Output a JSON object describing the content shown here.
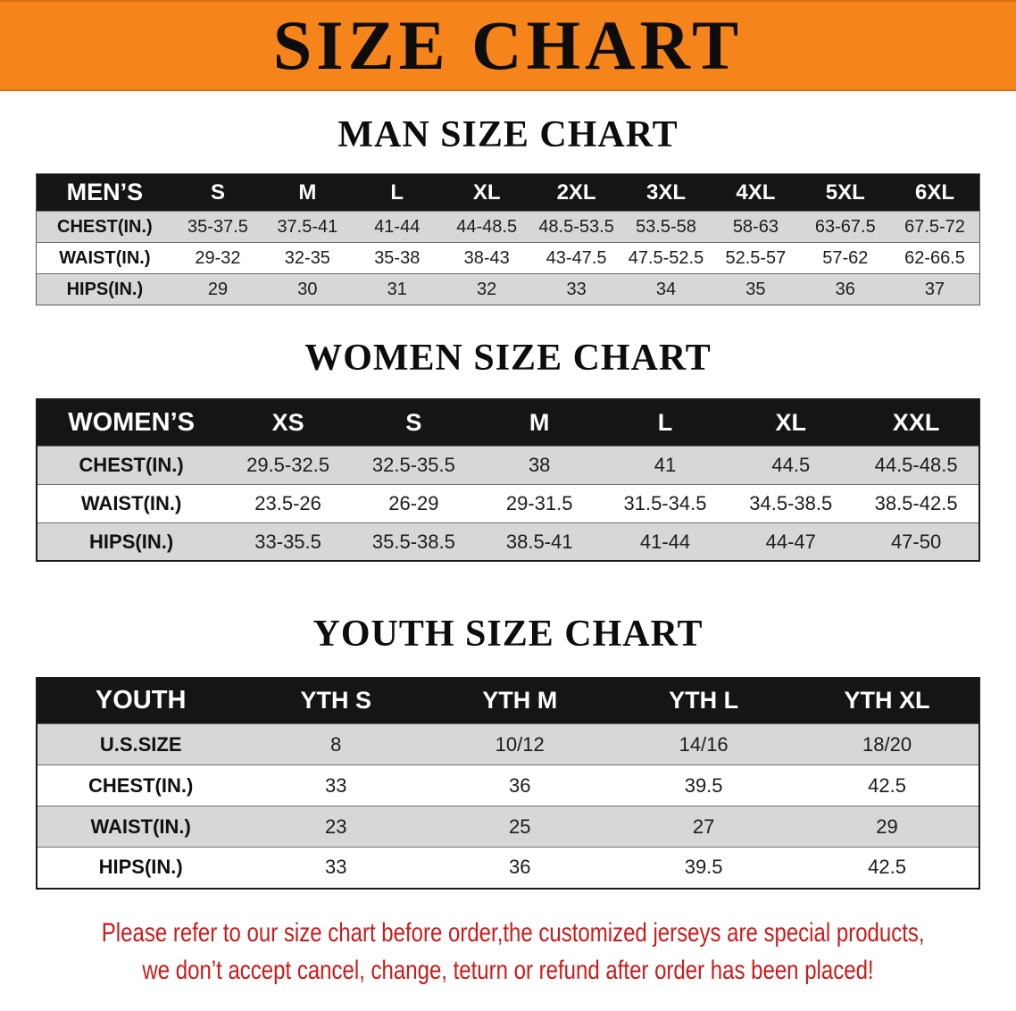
{
  "banner": {
    "title": "SIZE CHART"
  },
  "sections": [
    {
      "id": "men",
      "heading": "MAN SIZE CHART",
      "table": {
        "header": [
          "MEN’S",
          "S",
          "M",
          "L",
          "XL",
          "2XL",
          "3XL",
          "4XL",
          "5XL",
          "6XL"
        ],
        "rows": [
          [
            "CHEST(IN.)",
            "35-37.5",
            "37.5-41",
            "41-44",
            "44-48.5",
            "48.5-53.5",
            "53.5-58",
            "58-63",
            "63-67.5",
            "67.5-72"
          ],
          [
            "WAIST(IN.)",
            "29-32",
            "32-35",
            "35-38",
            "38-43",
            "43-47.5",
            "47.5-52.5",
            "52.5-57",
            "57-62",
            "62-66.5"
          ],
          [
            "HIPS(IN.)",
            "29",
            "30",
            "31",
            "32",
            "33",
            "34",
            "35",
            "36",
            "37"
          ]
        ]
      }
    },
    {
      "id": "women",
      "heading": "WOMEN SIZE CHART",
      "table": {
        "header": [
          "WOMEN’S",
          "XS",
          "S",
          "M",
          "L",
          "XL",
          "XXL"
        ],
        "rows": [
          [
            "CHEST(IN.)",
            "29.5-32.5",
            "32.5-35.5",
            "38",
            "41",
            "44.5",
            "44.5-48.5"
          ],
          [
            "WAIST(IN.)",
            "23.5-26",
            "26-29",
            "29-31.5",
            "31.5-34.5",
            "34.5-38.5",
            "38.5-42.5"
          ],
          [
            "HIPS(IN.)",
            "33-35.5",
            "35.5-38.5",
            "38.5-41",
            "41-44",
            "44-47",
            "47-50"
          ]
        ]
      }
    },
    {
      "id": "youth",
      "heading": "YOUTH SIZE CHART",
      "table": {
        "header": [
          "YOUTH",
          "YTH S",
          "YTH M",
          "YTH L",
          "YTH XL"
        ],
        "rows": [
          [
            "U.S.SIZE",
            "8",
            "10/12",
            "14/16",
            "18/20"
          ],
          [
            "CHEST(IN.)",
            "33",
            "36",
            "39.5",
            "42.5"
          ],
          [
            "WAIST(IN.)",
            "23",
            "25",
            "27",
            "29"
          ],
          [
            "HIPS(IN.)",
            "33",
            "36",
            "39.5",
            "42.5"
          ]
        ]
      }
    }
  ],
  "disclaimer": {
    "line1": "Please refer to our size chart before order,the customized jerseys are special products,",
    "line2": "we don’t accept cancel, change, teturn or refund after order has been placed!"
  },
  "colors": {
    "banner_orange": "#F5851B",
    "table_header_black": "#151515",
    "row_shaded": "#D7D7D7",
    "row_plain": "#FFFFFF",
    "disclaimer_red": "#CC1A1A"
  }
}
